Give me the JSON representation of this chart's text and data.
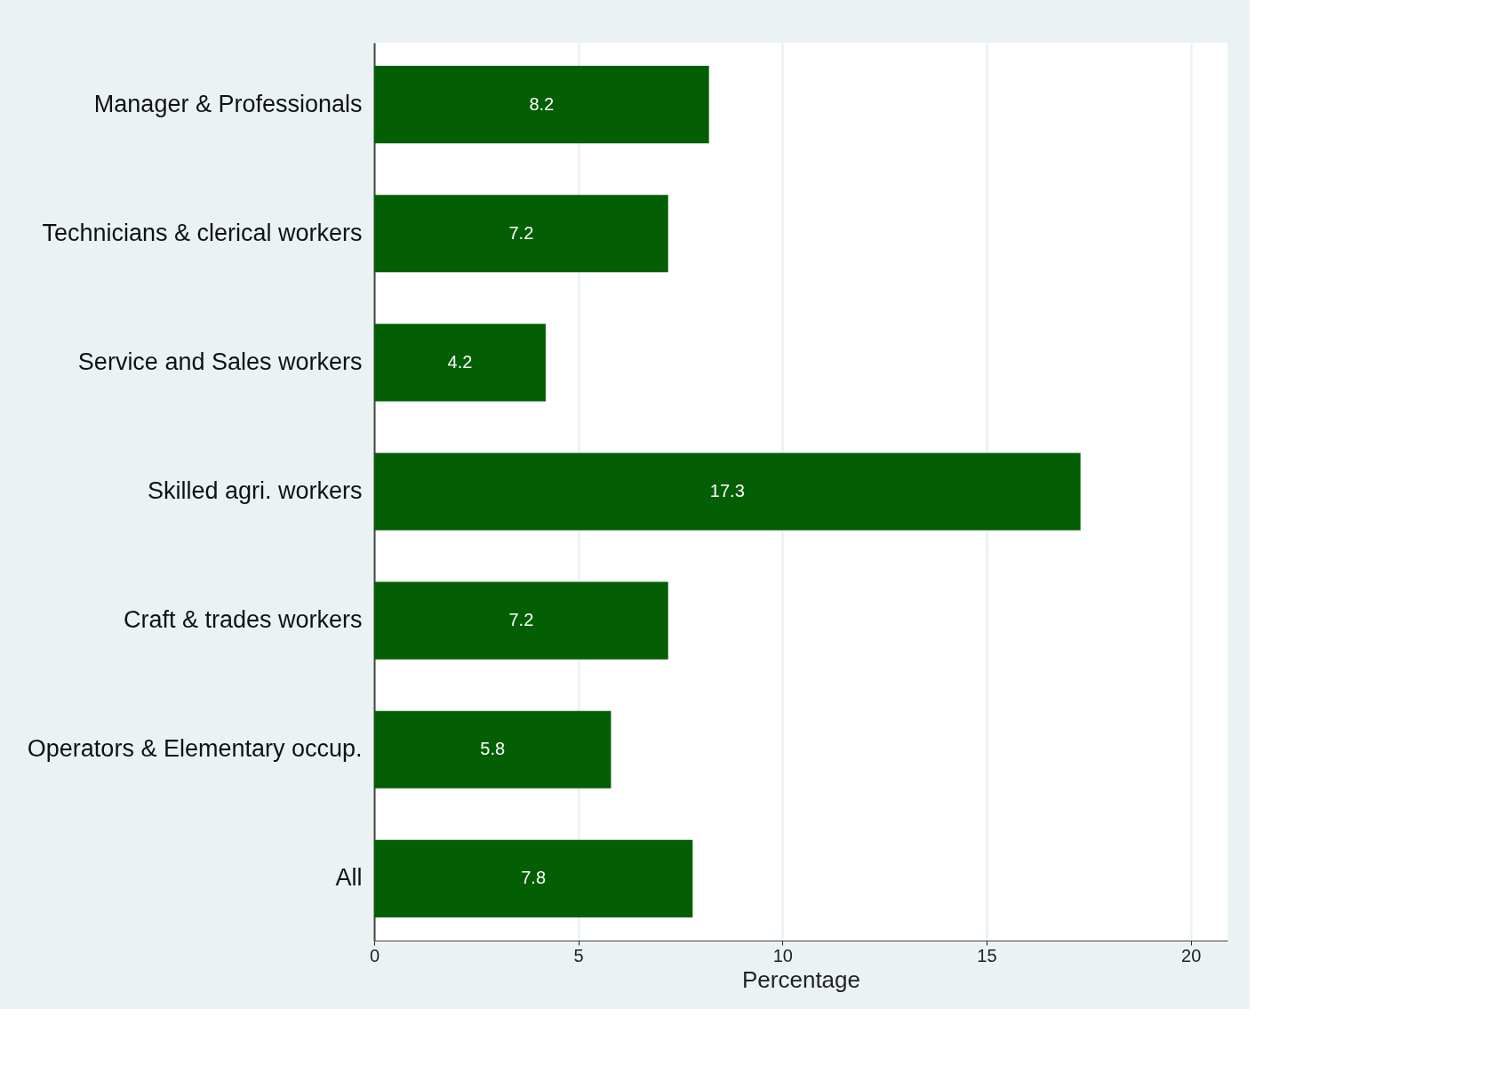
{
  "chart_data": {
    "type": "bar",
    "orientation": "horizontal",
    "xlabel": "Percentage",
    "categories": [
      "Manager & Professionals",
      "Technicians & clerical workers",
      "Service and Sales workers",
      "Skilled agri. workers",
      "Craft & trades workers",
      "Operators & Elementary occup.",
      "All"
    ],
    "values": [
      8.2,
      7.2,
      4.2,
      17.3,
      7.2,
      5.8,
      7.8
    ],
    "color": "#035e04",
    "xlim": [
      0,
      20.9
    ],
    "xticks": [
      0,
      5,
      10,
      15,
      20
    ],
    "grid": "x",
    "data_labels": true
  }
}
